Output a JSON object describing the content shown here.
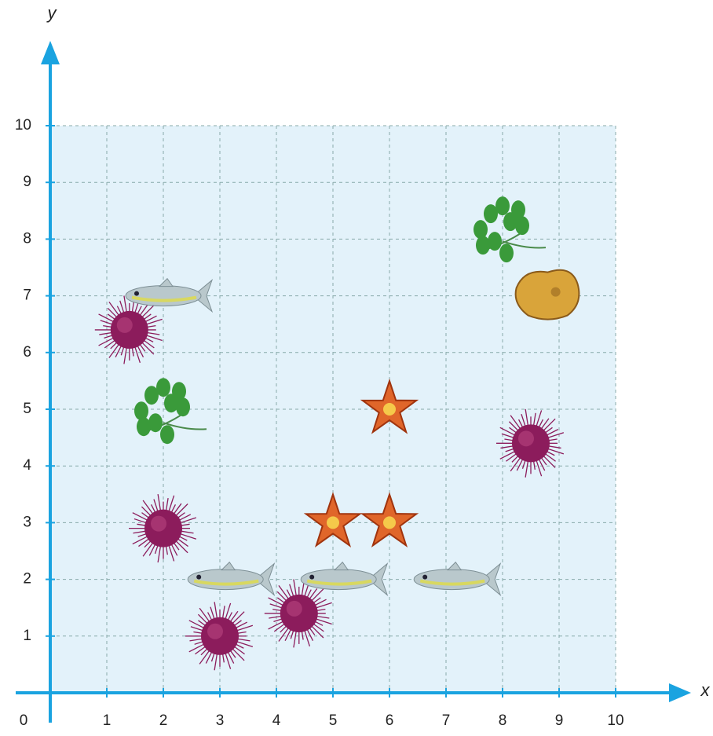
{
  "chart_data": {
    "type": "scatter",
    "x_label": "x",
    "y_label": "y",
    "origin_label": "0",
    "xlim": [
      0,
      10
    ],
    "ylim": [
      0,
      10
    ],
    "xticks": [
      1,
      2,
      3,
      4,
      5,
      6,
      7,
      8,
      9,
      10
    ],
    "yticks": [
      1,
      2,
      3,
      4,
      5,
      6,
      7,
      8,
      9,
      10
    ],
    "grid": true,
    "axis_color": "#1aa3e0",
    "background": "#e3f2fa",
    "series": [
      {
        "marker": "urchin",
        "color": "#8c1c5c",
        "x": [
          1.4,
          2,
          3,
          4.4,
          8.5
        ],
        "values": [
          6.4,
          2.9,
          1,
          1.4,
          4.4
        ]
      },
      {
        "marker": "fish",
        "color": "#b9c8cc",
        "x": [
          2,
          3.1,
          5.1,
          7.1
        ],
        "values": [
          7,
          2,
          2,
          2
        ]
      },
      {
        "marker": "star",
        "color": "#e0662a",
        "x": [
          6,
          5,
          6
        ],
        "values": [
          5,
          3,
          3
        ]
      },
      {
        "marker": "seaweed",
        "color": "#3a9a3a",
        "x": [
          8,
          2
        ],
        "values": [
          8.1,
          4.9
        ]
      },
      {
        "marker": "sponge",
        "color": "#d9a43a",
        "x": [
          8.8
        ],
        "values": [
          7
        ]
      }
    ]
  }
}
